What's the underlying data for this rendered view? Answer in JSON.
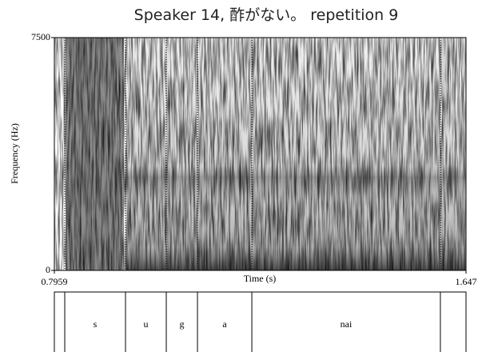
{
  "chart_data": {
    "type": "spectrogram",
    "title": "Speaker 14, 酢がない。 repetition 9",
    "x_label": "Time (s)",
    "y_label": "Frequency (Hz)",
    "xlim": [
      0.7959,
      1.647
    ],
    "xticks": [
      0.7959,
      1.647
    ],
    "ylim": [
      0,
      7500
    ],
    "yticks": [
      0,
      7500
    ],
    "tier": {
      "boundaries": [
        0.8174,
        0.943,
        1.0273,
        1.0918,
        1.2042,
        1.594
      ],
      "labels": [
        "s",
        "u",
        "g",
        "a",
        "nai"
      ]
    }
  }
}
